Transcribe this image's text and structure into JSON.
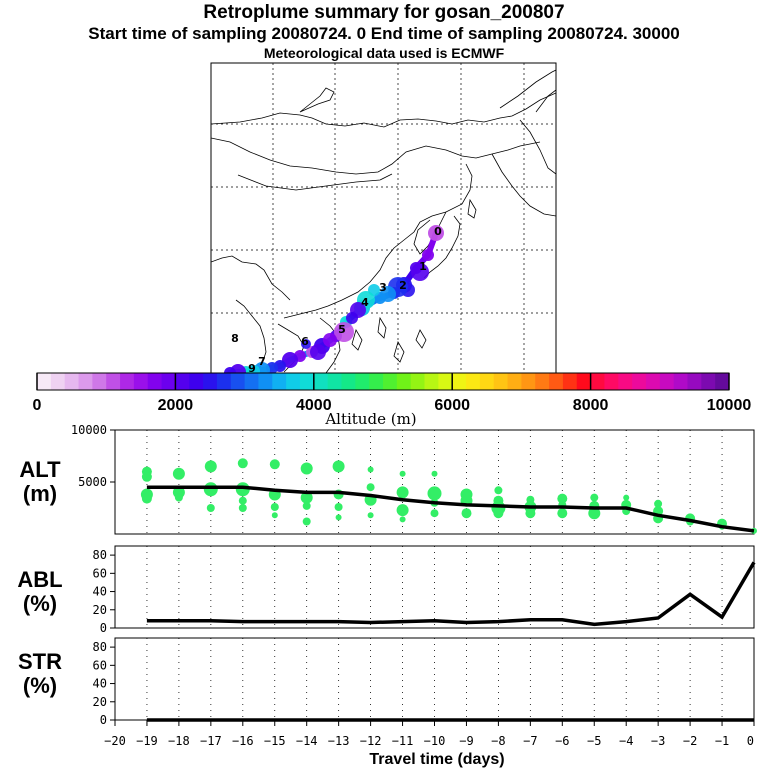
{
  "titles": {
    "line1": "Retroplume summary for gosan_200807",
    "line2": "Start time of sampling 20080724.     0     End time of sampling 20080724. 30000",
    "line3": "Meteorological data used is ECMWF"
  },
  "map": {
    "day_labels": [
      "0",
      "1",
      "2",
      "3",
      "4",
      "5",
      "6",
      "7",
      "8",
      "9"
    ]
  },
  "colorbar": {
    "title": "Altitude (m)",
    "tick_labels": [
      "0",
      "2000",
      "4000",
      "6000",
      "8000",
      "10000"
    ],
    "colors": [
      "#f7eaf7",
      "#efd2f2",
      "#e6b8ef",
      "#dc9aec",
      "#cf78e8",
      "#c050e6",
      "#ae28e6",
      "#9a10ea",
      "#8202ee",
      "#6c00ee",
      "#5400ee",
      "#3e00ee",
      "#2a12ee",
      "#1c30ee",
      "#1850f0",
      "#1470f2",
      "#1090f4",
      "#10b0f2",
      "#10cce8",
      "#10dcd8",
      "#10e0c0",
      "#10e4a4",
      "#14e888",
      "#20ec6c",
      "#34ee4c",
      "#50f030",
      "#70f218",
      "#94f414",
      "#b8f614",
      "#d8f814",
      "#f0f414",
      "#fce814",
      "#ffd814",
      "#ffc414",
      "#ffae14",
      "#ff9614",
      "#ff7a14",
      "#ff5a14",
      "#ff3214",
      "#ff0a1c",
      "#ff0a40",
      "#ff0a64",
      "#f80a84",
      "#ec0a9c",
      "#dc0ab0",
      "#c80ac0",
      "#b00ac8",
      "#960ac0",
      "#7c0ab0",
      "#640a9c"
    ]
  },
  "chart_data": [
    {
      "type": "line",
      "title": "ALT",
      "ylabel": "ALT (m)",
      "ylabel_line1": "ALT",
      "ylabel_line2": "(m)",
      "ylim": [
        0,
        10000
      ],
      "yticks": [
        0,
        5000,
        10000
      ],
      "ytick_labels": [
        "5000",
        "10000"
      ],
      "x": [
        -19,
        -18,
        -17,
        -16,
        -15,
        -14,
        -13,
        -12,
        -11,
        -10,
        -9,
        -8,
        -7,
        -6,
        -5,
        -4,
        -3,
        -2,
        -1,
        0
      ],
      "series": [
        {
          "name": "mean altitude",
          "values": [
            4500,
            4500,
            4500,
            4500,
            4200,
            4000,
            4000,
            3700,
            3300,
            3000,
            2800,
            2700,
            2600,
            2600,
            2500,
            2500,
            1800,
            1300,
            700,
            300
          ]
        }
      ],
      "clusters": [
        {
          "x": -19,
          "points": [
            [
              6000,
              5
            ],
            [
              5500,
              5
            ],
            [
              3800,
              6
            ],
            [
              3400,
              5
            ]
          ]
        },
        {
          "x": -18,
          "points": [
            [
              5800,
              6
            ],
            [
              4000,
              6
            ],
            [
              3500,
              4
            ]
          ]
        },
        {
          "x": -17,
          "points": [
            [
              6500,
              6
            ],
            [
              4300,
              7
            ],
            [
              2500,
              4
            ]
          ]
        },
        {
          "x": -16,
          "points": [
            [
              6800,
              5
            ],
            [
              4300,
              7
            ],
            [
              3200,
              4
            ],
            [
              2500,
              4
            ]
          ]
        },
        {
          "x": -15,
          "points": [
            [
              6700,
              5
            ],
            [
              3800,
              6
            ],
            [
              2600,
              4
            ],
            [
              1800,
              3
            ]
          ]
        },
        {
          "x": -14,
          "points": [
            [
              6300,
              6
            ],
            [
              3500,
              6
            ],
            [
              2700,
              4
            ],
            [
              1200,
              4
            ]
          ]
        },
        {
          "x": -13,
          "points": [
            [
              6500,
              6
            ],
            [
              3800,
              5
            ],
            [
              2600,
              4
            ],
            [
              1600,
              3
            ]
          ]
        },
        {
          "x": -12,
          "points": [
            [
              6200,
              3
            ],
            [
              4500,
              4
            ],
            [
              3300,
              6
            ],
            [
              1800,
              3
            ]
          ]
        },
        {
          "x": -11,
          "points": [
            [
              5800,
              3
            ],
            [
              4000,
              6
            ],
            [
              2300,
              6
            ],
            [
              1400,
              3
            ]
          ]
        },
        {
          "x": -10,
          "points": [
            [
              5800,
              3
            ],
            [
              3900,
              7
            ],
            [
              3000,
              4
            ],
            [
              2000,
              4
            ]
          ]
        },
        {
          "x": -9,
          "points": [
            [
              3800,
              6
            ],
            [
              3200,
              6
            ],
            [
              2000,
              5
            ]
          ]
        },
        {
          "x": -8,
          "points": [
            [
              4200,
              4
            ],
            [
              3200,
              5
            ],
            [
              2500,
              7
            ],
            [
              2000,
              5
            ]
          ]
        },
        {
          "x": -7,
          "points": [
            [
              3300,
              4
            ],
            [
              2600,
              6
            ],
            [
              2000,
              5
            ]
          ]
        },
        {
          "x": -6,
          "points": [
            [
              3400,
              5
            ],
            [
              2800,
              4
            ],
            [
              2000,
              5
            ]
          ]
        },
        {
          "x": -5,
          "points": [
            [
              3500,
              4
            ],
            [
              2700,
              5
            ],
            [
              2000,
              6
            ]
          ]
        },
        {
          "x": -4,
          "points": [
            [
              3500,
              3
            ],
            [
              2800,
              5
            ],
            [
              2200,
              4
            ]
          ]
        },
        {
          "x": -3,
          "points": [
            [
              2900,
              4
            ],
            [
              2200,
              5
            ],
            [
              1500,
              5
            ]
          ]
        },
        {
          "x": -2,
          "points": [
            [
              1500,
              5
            ],
            [
              1200,
              4
            ]
          ]
        },
        {
          "x": -1,
          "points": [
            [
              1000,
              5
            ],
            [
              700,
              3
            ]
          ]
        },
        {
          "x": 0,
          "points": [
            [
              300,
              3
            ]
          ]
        }
      ],
      "cluster_color": "#33ee66"
    },
    {
      "type": "line",
      "title": "ABL",
      "ylabel": "ABL (%)",
      "ylabel_line1": "ABL",
      "ylabel_line2": "(%)",
      "ylim": [
        0,
        90
      ],
      "yticks": [
        0,
        20,
        40,
        60,
        80
      ],
      "ytick_labels": [
        "0",
        "20",
        "40",
        "60",
        "80"
      ],
      "x": [
        -19,
        -18,
        -17,
        -16,
        -15,
        -14,
        -13,
        -12,
        -11,
        -10,
        -9,
        -8,
        -7,
        -6,
        -5,
        -4,
        -3,
        -2,
        -1,
        0
      ],
      "series": [
        {
          "name": "ABL fraction",
          "values": [
            8,
            8,
            8,
            7,
            7,
            7,
            7,
            6,
            7,
            8,
            6,
            7,
            9,
            9,
            4,
            7,
            11,
            37,
            12,
            72
          ]
        }
      ]
    },
    {
      "type": "line",
      "title": "STR",
      "ylabel": "STR (%)",
      "ylabel_line1": "STR",
      "ylabel_line2": "(%)",
      "ylim": [
        0,
        90
      ],
      "yticks": [
        0,
        20,
        40,
        60,
        80
      ],
      "ytick_labels": [
        "0",
        "20",
        "40",
        "60",
        "80"
      ],
      "x": [
        -19,
        -18,
        -17,
        -16,
        -15,
        -14,
        -13,
        -12,
        -11,
        -10,
        -9,
        -8,
        -7,
        -6,
        -5,
        -4,
        -3,
        -2,
        -1,
        0
      ],
      "series": [
        {
          "name": "STR fraction",
          "values": [
            0,
            0,
            0,
            0,
            0,
            0,
            0,
            0,
            0,
            0,
            0,
            0,
            0,
            0,
            0,
            0,
            0,
            0,
            0,
            0
          ]
        }
      ]
    }
  ],
  "x_axis": {
    "xlabel": "Travel time (days)",
    "xlim": [
      -20,
      0
    ],
    "tick_labels": [
      "−20",
      "−19",
      "−18",
      "−17",
      "−16",
      "−15",
      "−14",
      "−13",
      "−12",
      "−11",
      "−10",
      "−9",
      "−8",
      "−7",
      "−6",
      "−5",
      "−4",
      "−3",
      "−2",
      "−1",
      "0"
    ]
  }
}
